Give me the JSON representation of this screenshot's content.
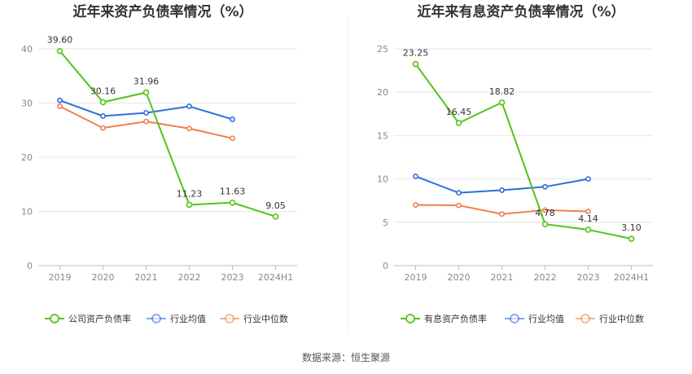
{
  "chart_data": [
    {
      "type": "line",
      "title": "近年来资产负债率情况（%）",
      "categories": [
        "2019",
        "2020",
        "2021",
        "2022",
        "2023",
        "2024H1"
      ],
      "ylim": [
        0,
        40
      ],
      "yticks": [
        0,
        10,
        20,
        30,
        40
      ],
      "grid": true,
      "legend": "bottom",
      "series": [
        {
          "name": "公司资产负债率",
          "color": "#52c41a",
          "values": [
            39.6,
            30.16,
            31.96,
            11.23,
            11.63,
            9.05
          ],
          "labels": [
            "39.60",
            "30.16",
            "31.96",
            "11.23",
            "11.63",
            "9.05"
          ]
        },
        {
          "name": "行业均值",
          "color": "#2f6fd6",
          "values": [
            30.5,
            27.6,
            28.2,
            29.4,
            27.0,
            null
          ]
        },
        {
          "name": "行业中位数",
          "color": "#f07f4f",
          "values": [
            29.4,
            25.4,
            26.6,
            25.3,
            23.5,
            null
          ]
        }
      ]
    },
    {
      "type": "line",
      "title": "近年来有息资产负债率情况（%）",
      "categories": [
        "2019",
        "2020",
        "2021",
        "2022",
        "2023",
        "2024H1"
      ],
      "ylim": [
        0,
        25
      ],
      "yticks": [
        0,
        5,
        10,
        15,
        20,
        25
      ],
      "grid": true,
      "legend": "bottom",
      "series": [
        {
          "name": "有息资产负债率",
          "color": "#52c41a",
          "values": [
            23.25,
            16.45,
            18.82,
            4.78,
            4.14,
            3.1
          ],
          "labels": [
            "23.25",
            "16.45",
            "18.82",
            "4.78",
            "4.14",
            "3.10"
          ]
        },
        {
          "name": "行业均值",
          "color": "#2f6fd6",
          "values": [
            10.3,
            8.4,
            8.7,
            9.1,
            10.0,
            null
          ]
        },
        {
          "name": "行业中位数",
          "color": "#f07f4f",
          "values": [
            7.0,
            6.95,
            5.95,
            6.4,
            6.25,
            null
          ]
        }
      ]
    }
  ],
  "footer": {
    "source": "数据来源：恒生聚源"
  }
}
